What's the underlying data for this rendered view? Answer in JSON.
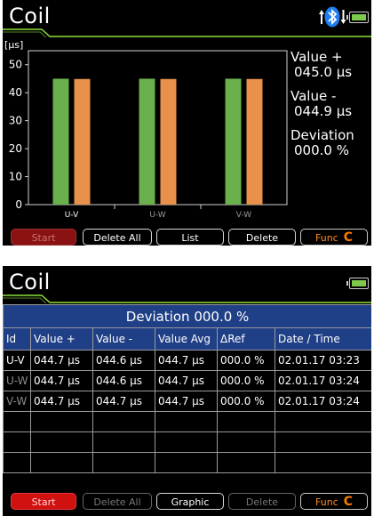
{
  "top_screen": {
    "title": "Coil",
    "status_icons": [
      "arrows-icon",
      "bluetooth-icon",
      "battery-icon"
    ],
    "chart_data": {
      "type": "bar",
      "ylabel": "[µs]",
      "ylim": [
        0,
        55
      ],
      "yticks": [
        0,
        10,
        20,
        30,
        40,
        50
      ],
      "categories": [
        "U-V",
        "U-W",
        "V-W"
      ],
      "series": [
        {
          "values": [
            45.0,
            45.0,
            45.0
          ],
          "color": "#6ab04c"
        },
        {
          "values": [
            44.9,
            44.9,
            44.9
          ],
          "color": "#e8914a"
        }
      ],
      "category_label_colors": [
        "#ffffff",
        "#9a9a9a",
        "#9a9a9a"
      ],
      "grid": false
    },
    "readout": {
      "value_plus_label": "Value +",
      "value_plus": "045.0 µs",
      "value_minus_label": "Value -",
      "value_minus": "044.9 µs",
      "deviation_label": "Deviation",
      "deviation": "000.0 %"
    },
    "buttons": {
      "start": "Start",
      "delete_all": "Delete All",
      "list": "List",
      "delete": "Delete",
      "func": "Func",
      "func_icon": "C"
    }
  },
  "bottom_screen": {
    "title": "Coil",
    "caption": "Deviation 000.0 %",
    "columns": [
      "Id",
      "Value +",
      "Value -",
      "Value Avg",
      "ΔRef",
      "Date / Time"
    ],
    "rows": [
      [
        "U-V",
        "044.7 µs",
        "044.6 µs",
        "044.7 µs",
        "000.0 %",
        "02.01.17  03:23"
      ],
      [
        "U-W",
        "044.7 µs",
        "044.6 µs",
        "044.7 µs",
        "000.0 %",
        "02.01.17  03:24"
      ],
      [
        "V-W",
        "044.7 µs",
        "044.7 µs",
        "044.7 µs",
        "000.0 %",
        "02.01.17  03:24"
      ],
      [
        "",
        "",
        "",
        "",
        "",
        ""
      ],
      [
        "",
        "",
        "",
        "",
        "",
        ""
      ],
      [
        "",
        "",
        "",
        "",
        "",
        ""
      ]
    ],
    "buttons": {
      "start": "Start",
      "delete_all": "Delete All",
      "graphic": "Graphic",
      "delete": "Delete",
      "func": "Func",
      "func_icon": "C"
    }
  }
}
